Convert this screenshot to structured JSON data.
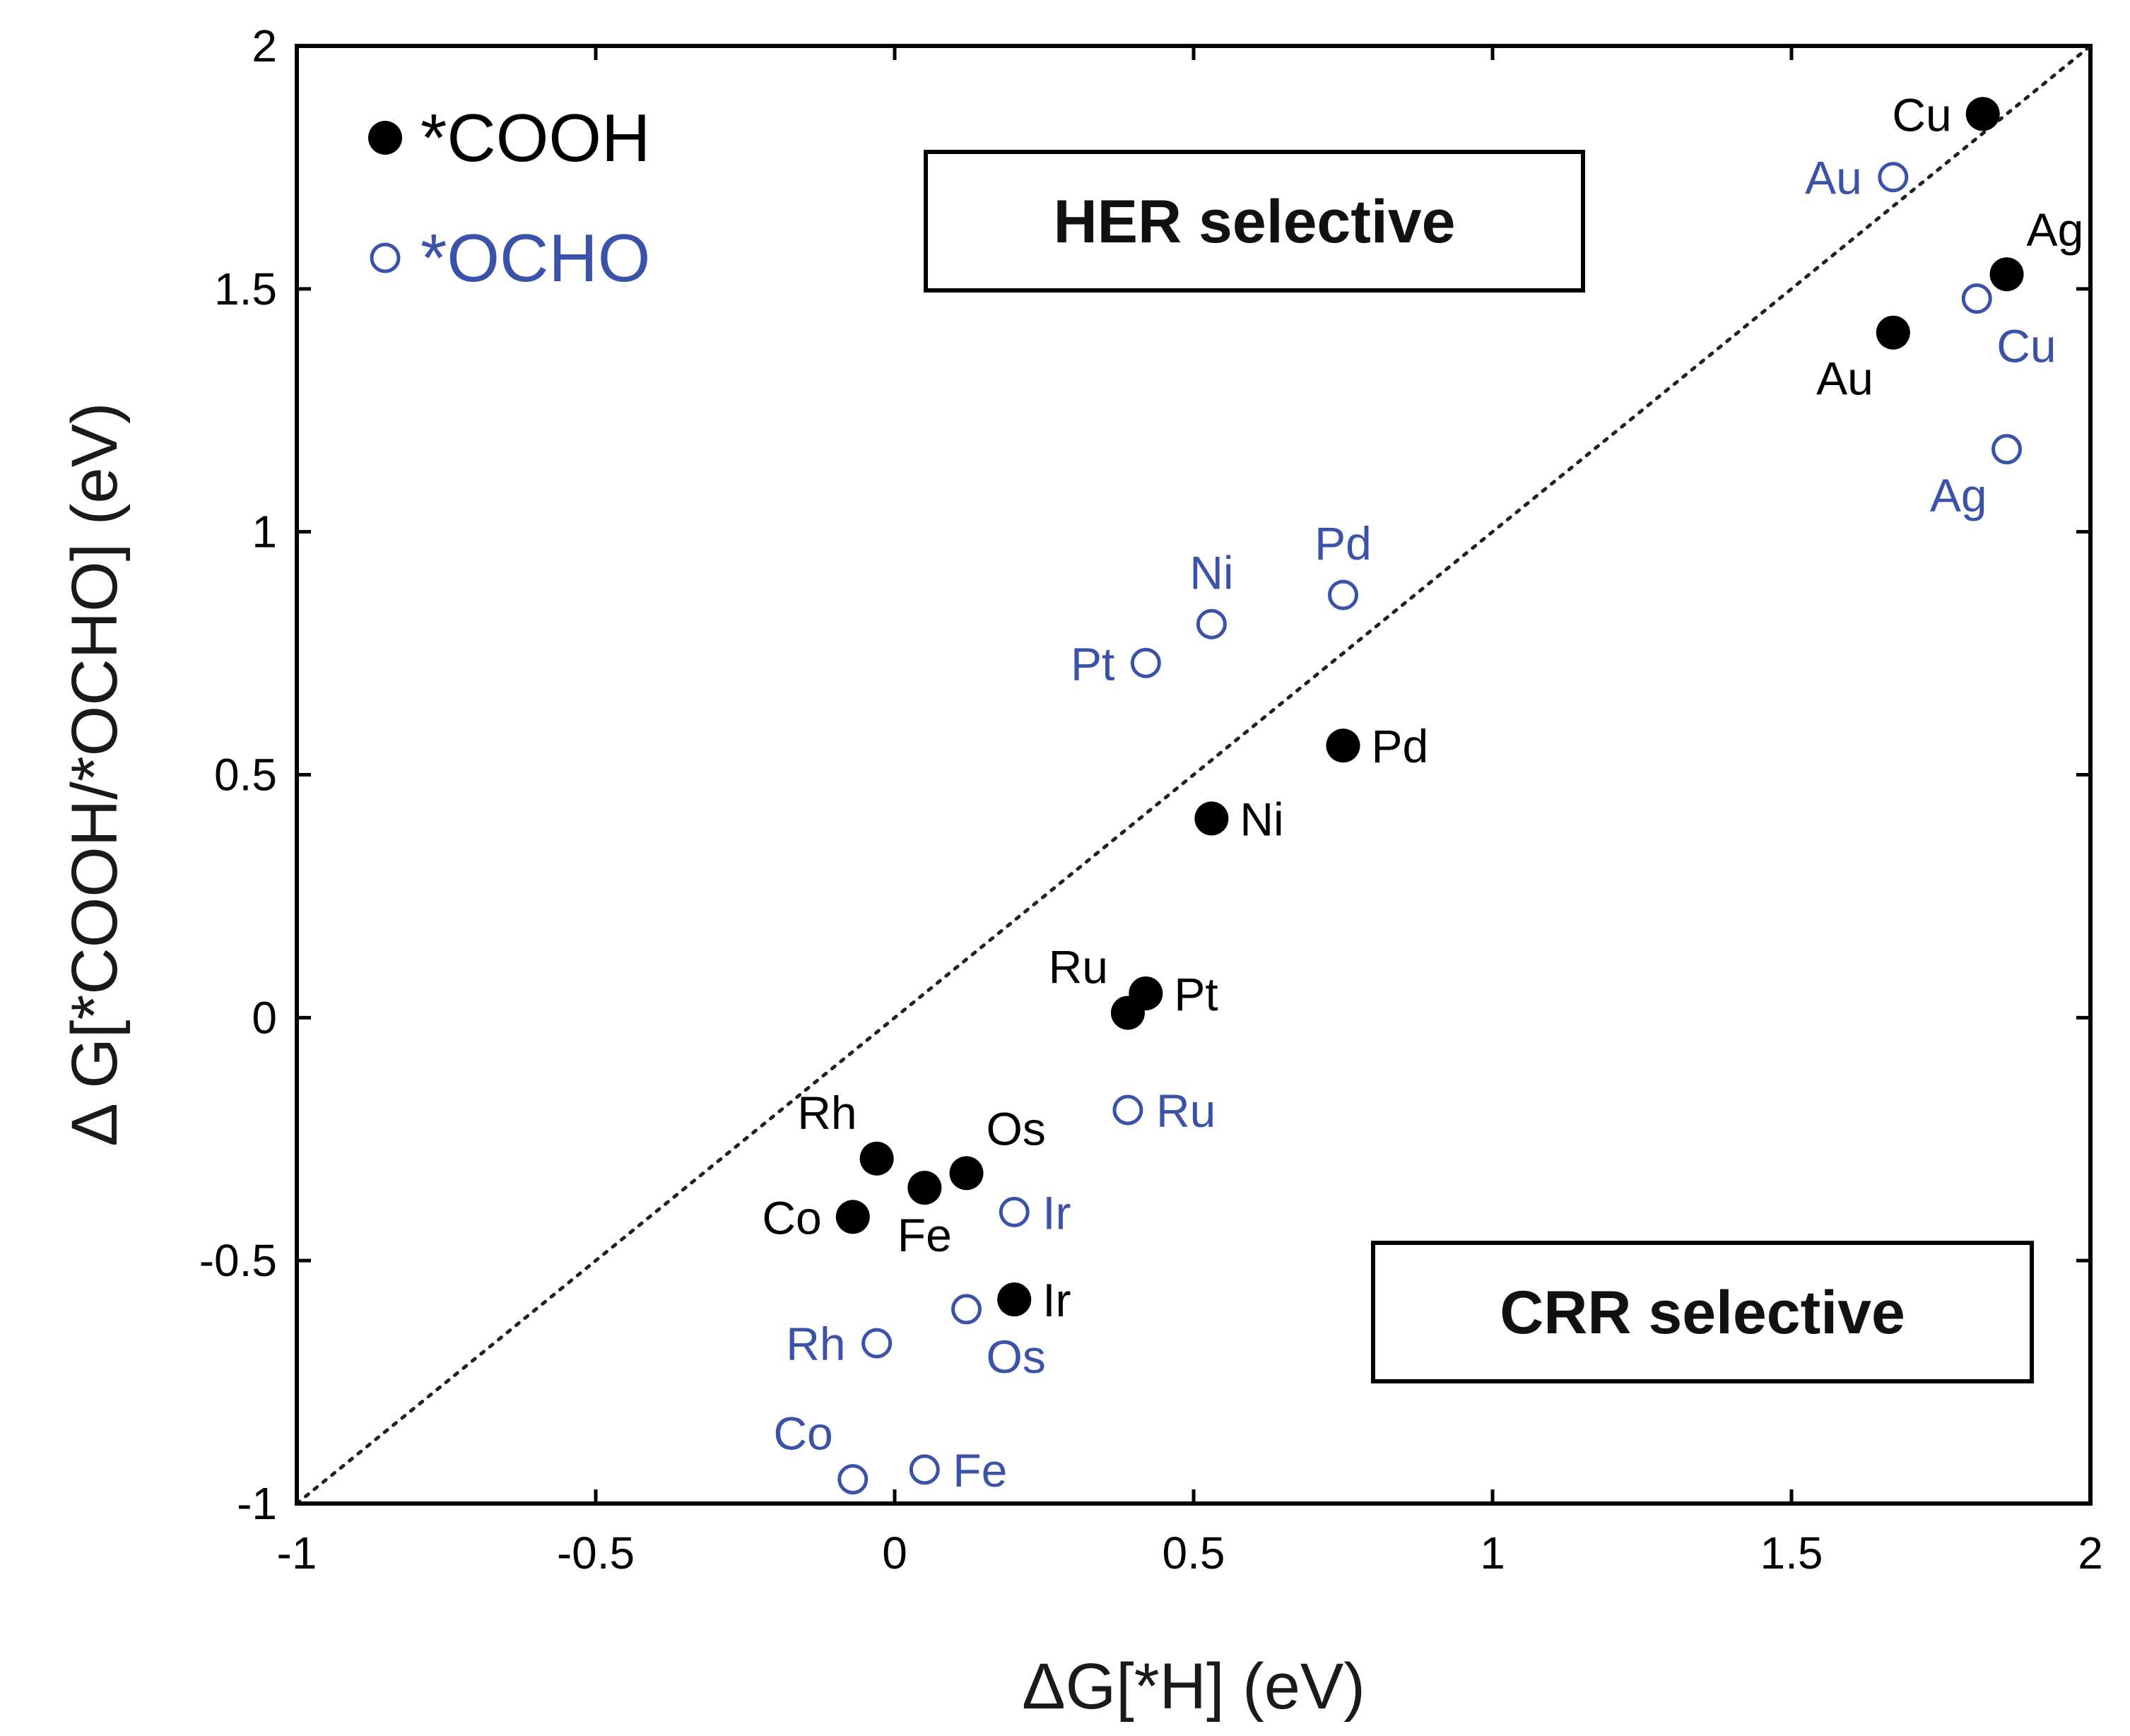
{
  "chart_data": {
    "type": "scatter",
    "title": "",
    "xlabel": "ΔG[*H] (eV)",
    "ylabel": "Δ G[*COOH/*OCHO] (eV)",
    "xlim": [
      -1,
      2
    ],
    "ylim": [
      -1,
      2
    ],
    "x_ticks": [
      -1,
      -0.5,
      0,
      0.5,
      1,
      1.5,
      2
    ],
    "y_ticks": [
      -1,
      -0.5,
      0,
      0.5,
      1,
      1.5,
      2
    ],
    "x_tick_labels": [
      "-1",
      "-0.5",
      "0",
      "0.5",
      "1",
      "1.5",
      "2"
    ],
    "y_tick_labels": [
      "-1",
      "-0.5",
      "0",
      "0.5",
      "1",
      "1.5",
      "2"
    ],
    "grid": false,
    "reference_line": {
      "style": "dotted",
      "from": [
        -1,
        -1
      ],
      "to": [
        2,
        2
      ]
    },
    "annotations": [
      {
        "id": "her",
        "text": "HER selective",
        "boxed": true
      },
      {
        "id": "crr",
        "text": "CRR selective",
        "boxed": true
      }
    ],
    "legend": {
      "position": "top-left",
      "entries": [
        {
          "series": "cooh",
          "label": "*COOH"
        },
        {
          "series": "ocho",
          "label": "*OCHO"
        }
      ]
    },
    "series": [
      {
        "id": "cooh",
        "name": "*COOH",
        "marker": "filled-circle",
        "color": "#000000",
        "points": [
          {
            "label": "Cu",
            "x": 1.82,
            "y": 1.86,
            "label_pos": "left"
          },
          {
            "label": "Ag",
            "x": 1.86,
            "y": 1.53,
            "label_pos": "above-right"
          },
          {
            "label": "Au",
            "x": 1.67,
            "y": 1.41,
            "label_pos": "below-left"
          },
          {
            "label": "Pd",
            "x": 0.75,
            "y": 0.56,
            "label_pos": "right"
          },
          {
            "label": "Ni",
            "x": 0.53,
            "y": 0.41,
            "label_pos": "right"
          },
          {
            "label": "Pt",
            "x": 0.42,
            "y": 0.05,
            "label_pos": "right"
          },
          {
            "label": "Ru",
            "x": 0.39,
            "y": 0.01,
            "label_pos": "above-left"
          },
          {
            "label": "Os",
            "x": 0.12,
            "y": -0.32,
            "label_pos": "above-right"
          },
          {
            "label": "Fe",
            "x": 0.05,
            "y": -0.35,
            "label_pos": "below"
          },
          {
            "label": "Rh",
            "x": -0.03,
            "y": -0.29,
            "label_pos": "above-left"
          },
          {
            "label": "Co",
            "x": -0.07,
            "y": -0.41,
            "label_pos": "left"
          },
          {
            "label": "Ir",
            "x": 0.2,
            "y": -0.58,
            "label_pos": "right"
          }
        ]
      },
      {
        "id": "ocho",
        "name": "*OCHO",
        "marker": "open-circle",
        "color": "#3a52a8",
        "points": [
          {
            "label": "Au",
            "x": 1.67,
            "y": 1.73,
            "label_pos": "left"
          },
          {
            "label": "Cu",
            "x": 1.81,
            "y": 1.48,
            "label_pos": "below-right"
          },
          {
            "label": "Ag",
            "x": 1.86,
            "y": 1.17,
            "label_pos": "below-left"
          },
          {
            "label": "Pd",
            "x": 0.75,
            "y": 0.87,
            "label_pos": "above"
          },
          {
            "label": "Ni",
            "x": 0.53,
            "y": 0.81,
            "label_pos": "above"
          },
          {
            "label": "Pt",
            "x": 0.42,
            "y": 0.73,
            "label_pos": "left"
          },
          {
            "label": "Ru",
            "x": 0.39,
            "y": -0.19,
            "label_pos": "right"
          },
          {
            "label": "Ir",
            "x": 0.2,
            "y": -0.4,
            "label_pos": "right"
          },
          {
            "label": "Os",
            "x": 0.12,
            "y": -0.6,
            "label_pos": "below-right"
          },
          {
            "label": "Rh",
            "x": -0.03,
            "y": -0.67,
            "label_pos": "left"
          },
          {
            "label": "Co",
            "x": -0.07,
            "y": -0.95,
            "label_pos": "above-left"
          },
          {
            "label": "Fe",
            "x": 0.05,
            "y": -0.93,
            "label_pos": "right"
          }
        ]
      }
    ]
  }
}
